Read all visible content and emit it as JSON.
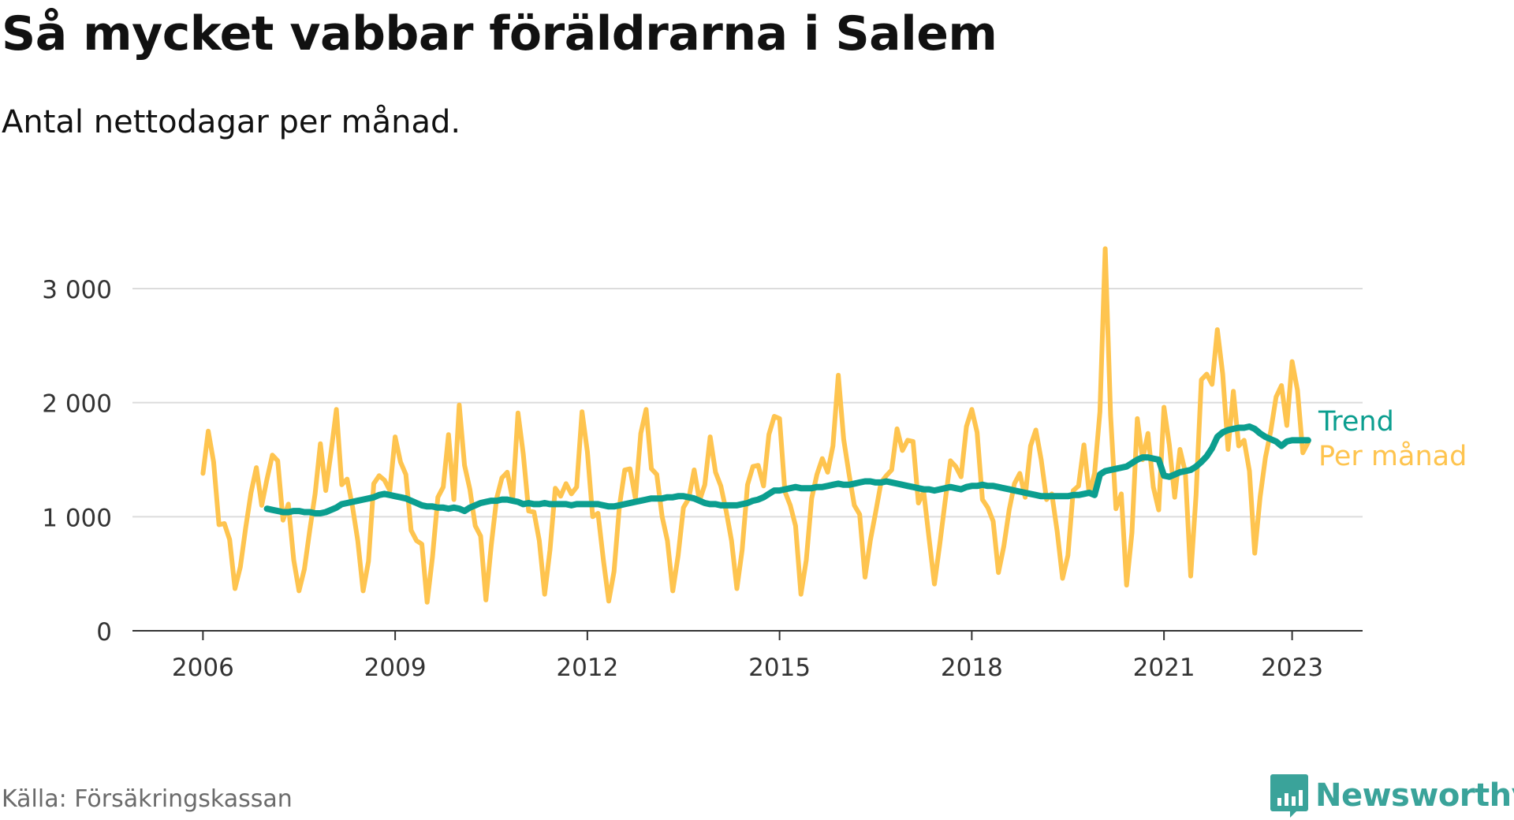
{
  "title": "Så mycket vabbar föräldrarna i Salem",
  "subtitle": "Antal nettodagar per månad.",
  "source": "Källa: Försäkringskassan",
  "brand": {
    "name": "Newsworthy",
    "color": "#3aa39a",
    "icon": "newsworthy-logo-icon"
  },
  "chart_data": {
    "type": "line",
    "x_start": "2006-01",
    "x_end": "2023-06",
    "x_ticks": [
      {
        "value": 2006,
        "label": "2006"
      },
      {
        "value": 2009,
        "label": "2009"
      },
      {
        "value": 2012,
        "label": "2012"
      },
      {
        "value": 2015,
        "label": "2015"
      },
      {
        "value": 2018,
        "label": "2018"
      },
      {
        "value": 2021,
        "label": "2021"
      },
      {
        "value": 2023,
        "label": "2023"
      }
    ],
    "y_ticks": [
      {
        "value": 0,
        "label": "0"
      },
      {
        "value": 1000,
        "label": "1 000"
      },
      {
        "value": 2000,
        "label": "2 000"
      },
      {
        "value": 3000,
        "label": "3 000"
      }
    ],
    "ylim": [
      0,
      3300
    ],
    "xlim": [
      2004.9,
      2024.1
    ],
    "grid": "horizontal",
    "legend": "end-of-line labels",
    "series": [
      {
        "name": "Per månad",
        "color": "#fec44f",
        "start": 2006.0,
        "step_months": 1,
        "values": [
          1380,
          1750,
          1480,
          930,
          940,
          800,
          370,
          560,
          900,
          1210,
          1430,
          1100,
          1330,
          1540,
          1490,
          970,
          1110,
          620,
          350,
          540,
          880,
          1200,
          1640,
          1230,
          1570,
          1940,
          1280,
          1330,
          1090,
          790,
          350,
          610,
          1290,
          1360,
          1320,
          1230,
          1700,
          1480,
          1370,
          880,
          790,
          760,
          250,
          650,
          1170,
          1260,
          1720,
          1150,
          1980,
          1450,
          1240,
          920,
          830,
          270,
          750,
          1160,
          1340,
          1390,
          1150,
          1910,
          1550,
          1050,
          1040,
          790,
          320,
          710,
          1250,
          1180,
          1290,
          1200,
          1260,
          1920,
          1570,
          1000,
          1030,
          620,
          260,
          520,
          1090,
          1410,
          1420,
          1160,
          1730,
          1940,
          1420,
          1370,
          1000,
          790,
          350,
          660,
          1080,
          1160,
          1410,
          1140,
          1280,
          1700,
          1390,
          1270,
          1050,
          790,
          370,
          710,
          1280,
          1440,
          1450,
          1270,
          1720,
          1880,
          1860,
          1220,
          1100,
          920,
          320,
          620,
          1160,
          1370,
          1510,
          1390,
          1620,
          2240,
          1680,
          1380,
          1100,
          1020,
          470,
          790,
          1040,
          1300,
          1360,
          1410,
          1770,
          1580,
          1670,
          1660,
          1120,
          1220,
          810,
          410,
          760,
          1130,
          1490,
          1440,
          1350,
          1790,
          1940,
          1740,
          1150,
          1080,
          960,
          510,
          740,
          1060,
          1290,
          1380,
          1170,
          1620,
          1760,
          1500,
          1150,
          1200,
          870,
          460,
          660,
          1230,
          1270,
          1630,
          1200,
          1380,
          1920,
          3350,
          1890,
          1070,
          1200,
          400,
          860,
          1860,
          1500,
          1730,
          1260,
          1060,
          1960,
          1630,
          1170,
          1590,
          1390,
          480,
          1190,
          2200,
          2250,
          2160,
          2640,
          2250,
          1590,
          2100,
          1620,
          1670,
          1400,
          680,
          1170,
          1520,
          1750,
          2050,
          2150,
          1800,
          2360,
          2110,
          1560,
          1650
        ]
      },
      {
        "name": "Trend",
        "color": "#0b9e8f",
        "start": 2007.0,
        "step_months": 1,
        "values": [
          1070,
          1060,
          1050,
          1040,
          1040,
          1050,
          1050,
          1040,
          1040,
          1030,
          1030,
          1040,
          1060,
          1080,
          1110,
          1120,
          1130,
          1140,
          1150,
          1160,
          1170,
          1190,
          1200,
          1190,
          1180,
          1170,
          1160,
          1140,
          1120,
          1100,
          1090,
          1090,
          1080,
          1080,
          1070,
          1080,
          1070,
          1050,
          1080,
          1100,
          1120,
          1130,
          1140,
          1140,
          1150,
          1150,
          1140,
          1130,
          1110,
          1120,
          1110,
          1110,
          1120,
          1110,
          1110,
          1110,
          1110,
          1100,
          1110,
          1110,
          1110,
          1110,
          1110,
          1100,
          1090,
          1090,
          1100,
          1110,
          1120,
          1130,
          1140,
          1150,
          1160,
          1160,
          1160,
          1170,
          1170,
          1180,
          1180,
          1170,
          1160,
          1140,
          1120,
          1110,
          1110,
          1100,
          1100,
          1100,
          1100,
          1110,
          1120,
          1140,
          1150,
          1170,
          1200,
          1230,
          1230,
          1240,
          1250,
          1260,
          1250,
          1250,
          1250,
          1260,
          1260,
          1270,
          1280,
          1290,
          1280,
          1280,
          1290,
          1300,
          1310,
          1310,
          1300,
          1300,
          1310,
          1300,
          1290,
          1280,
          1270,
          1260,
          1250,
          1240,
          1240,
          1230,
          1240,
          1250,
          1260,
          1250,
          1240,
          1260,
          1270,
          1270,
          1280,
          1270,
          1270,
          1260,
          1250,
          1240,
          1230,
          1220,
          1210,
          1200,
          1190,
          1180,
          1180,
          1180,
          1180,
          1180,
          1180,
          1190,
          1190,
          1200,
          1210,
          1190,
          1370,
          1400,
          1410,
          1420,
          1430,
          1440,
          1470,
          1500,
          1520,
          1520,
          1510,
          1500,
          1360,
          1350,
          1370,
          1390,
          1400,
          1410,
          1440,
          1480,
          1530,
          1600,
          1700,
          1740,
          1760,
          1770,
          1780,
          1780,
          1790,
          1770,
          1730,
          1700,
          1680,
          1660,
          1620,
          1660,
          1670,
          1670,
          1670,
          1670
        ]
      }
    ]
  }
}
